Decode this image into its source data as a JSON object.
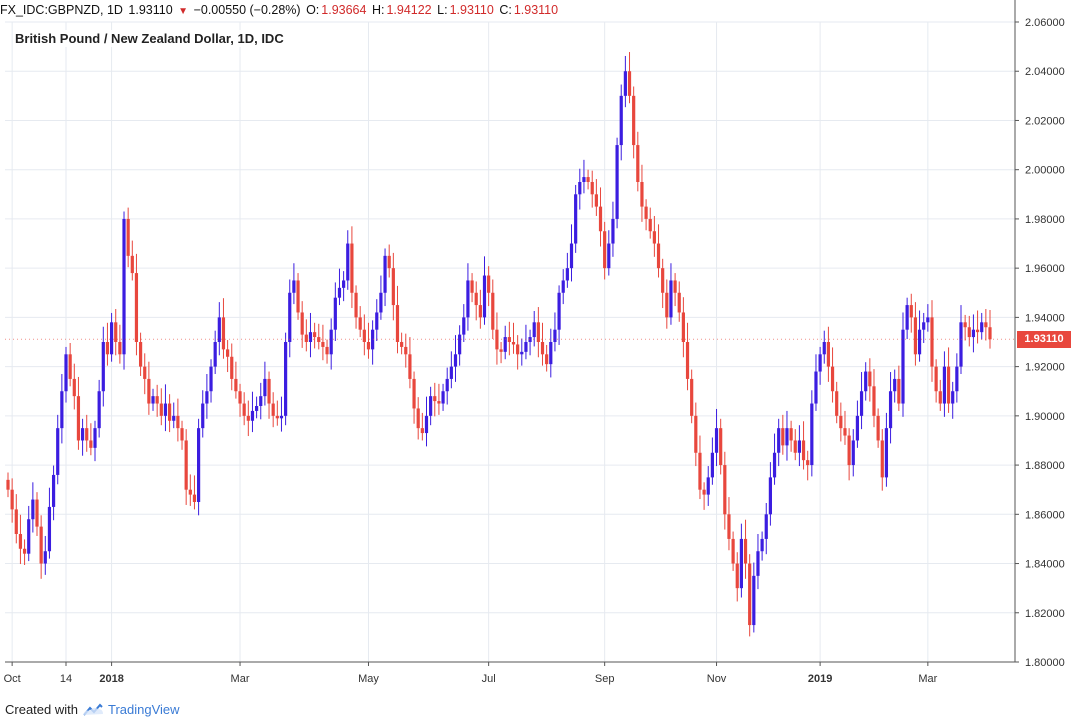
{
  "header": {
    "symbol": "FX_IDC:GBPNZD, 1D",
    "last": "1.93110",
    "change": "−0.00550 (−0.28%)",
    "open_label": "O:",
    "open": "1.93664",
    "high_label": "H:",
    "high": "1.94122",
    "low_label": "L:",
    "low": "1.93110",
    "close_label": "C:",
    "close": "1.93110"
  },
  "footer": {
    "created_with": "Created with",
    "brand": "TradingView"
  },
  "colors": {
    "up": "#3b1de0",
    "down": "#e8473d",
    "grid": "#e6eaf0",
    "axis": "#555555"
  },
  "icons": {
    "down_arrow": "triangle-down-icon",
    "brand_logo": "tradingview-cloud-icon"
  },
  "chart_data": {
    "type": "candlestick",
    "title": "British Pound / New Zealand Dollar, 1D, IDC",
    "ylim": [
      1.8,
      2.06
    ],
    "y_ticks": [
      "1.80000",
      "1.82000",
      "1.84000",
      "1.86000",
      "1.88000",
      "1.90000",
      "1.92000",
      "1.94000",
      "1.96000",
      "1.98000",
      "2.00000",
      "2.02000",
      "2.04000",
      "2.06000"
    ],
    "x_ticks": [
      {
        "label": "Oct",
        "index": 1,
        "bold": false
      },
      {
        "label": "14",
        "index": 14,
        "bold": false
      },
      {
        "label": "2018",
        "index": 25,
        "bold": true
      },
      {
        "label": "Mar",
        "index": 56,
        "bold": false
      },
      {
        "label": "May",
        "index": 87,
        "bold": false
      },
      {
        "label": "Jul",
        "index": 116,
        "bold": false
      },
      {
        "label": "Sep",
        "index": 144,
        "bold": false
      },
      {
        "label": "Nov",
        "index": 171,
        "bold": false
      },
      {
        "label": "2019",
        "index": 196,
        "bold": true
      },
      {
        "label": "Mar",
        "index": 222,
        "bold": false
      }
    ],
    "last_price": "1.93110",
    "closes": [
      1.87,
      1.862,
      1.852,
      1.846,
      1.844,
      1.858,
      1.866,
      1.855,
      1.84,
      1.845,
      1.863,
      1.876,
      1.895,
      1.91,
      1.925,
      1.915,
      1.908,
      1.89,
      1.895,
      1.89,
      1.887,
      1.895,
      1.91,
      1.93,
      1.925,
      1.938,
      1.93,
      1.925,
      1.98,
      1.965,
      1.958,
      1.93,
      1.92,
      1.915,
      1.905,
      1.908,
      1.905,
      1.9,
      1.905,
      1.898,
      1.9,
      1.895,
      1.89,
      1.87,
      1.868,
      1.865,
      1.895,
      1.905,
      1.91,
      1.92,
      1.93,
      1.94,
      1.927,
      1.924,
      1.915,
      1.91,
      1.905,
      1.9,
      1.898,
      1.902,
      1.904,
      1.908,
      1.915,
      1.905,
      1.9,
      1.899,
      1.9,
      1.93,
      1.95,
      1.955,
      1.942,
      1.933,
      1.93,
      1.934,
      1.932,
      1.93,
      1.928,
      1.925,
      1.935,
      1.948,
      1.952,
      1.955,
      1.97,
      1.95,
      1.94,
      1.935,
      1.93,
      1.927,
      1.935,
      1.942,
      1.95,
      1.965,
      1.96,
      1.945,
      1.93,
      1.928,
      1.925,
      1.915,
      1.903,
      1.895,
      1.893,
      1.9,
      1.908,
      1.906,
      1.905,
      1.91,
      1.915,
      1.92,
      1.925,
      1.933,
      1.94,
      1.955,
      1.95,
      1.945,
      1.94,
      1.957,
      1.95,
      1.935,
      1.927,
      1.926,
      1.932,
      1.93,
      1.929,
      1.925,
      1.926,
      1.93,
      1.932,
      1.938,
      1.93,
      1.925,
      1.921,
      1.93,
      1.935,
      1.95,
      1.955,
      1.96,
      1.97,
      1.99,
      1.995,
      1.997,
      1.995,
      1.99,
      1.985,
      1.975,
      1.96,
      1.97,
      1.98,
      2.01,
      2.03,
      2.04,
      2.03,
      2.01,
      1.995,
      1.985,
      1.98,
      1.975,
      1.97,
      1.96,
      1.95,
      1.94,
      1.955,
      1.95,
      1.942,
      1.93,
      1.915,
      1.9,
      1.885,
      1.87,
      1.868,
      1.875,
      1.885,
      1.895,
      1.88,
      1.86,
      1.85,
      1.84,
      1.83,
      1.85,
      1.84,
      1.815,
      1.835,
      1.845,
      1.85,
      1.86,
      1.875,
      1.885,
      1.895,
      1.888,
      1.895,
      1.89,
      1.885,
      1.89,
      1.882,
      1.88,
      1.905,
      1.918,
      1.925,
      1.93,
      1.92,
      1.91,
      1.9,
      1.895,
      1.892,
      1.88,
      1.89,
      1.9,
      1.91,
      1.918,
      1.912,
      1.9,
      1.89,
      1.875,
      1.895,
      1.91,
      1.915,
      1.905,
      1.935,
      1.945,
      1.94,
      1.925,
      1.935,
      1.938,
      1.94,
      1.92,
      1.91,
      1.905,
      1.92,
      1.905,
      1.91,
      1.92,
      1.938,
      1.936,
      1.932,
      1.935,
      1.934,
      1.938,
      1.936,
      1.9311
    ]
  }
}
